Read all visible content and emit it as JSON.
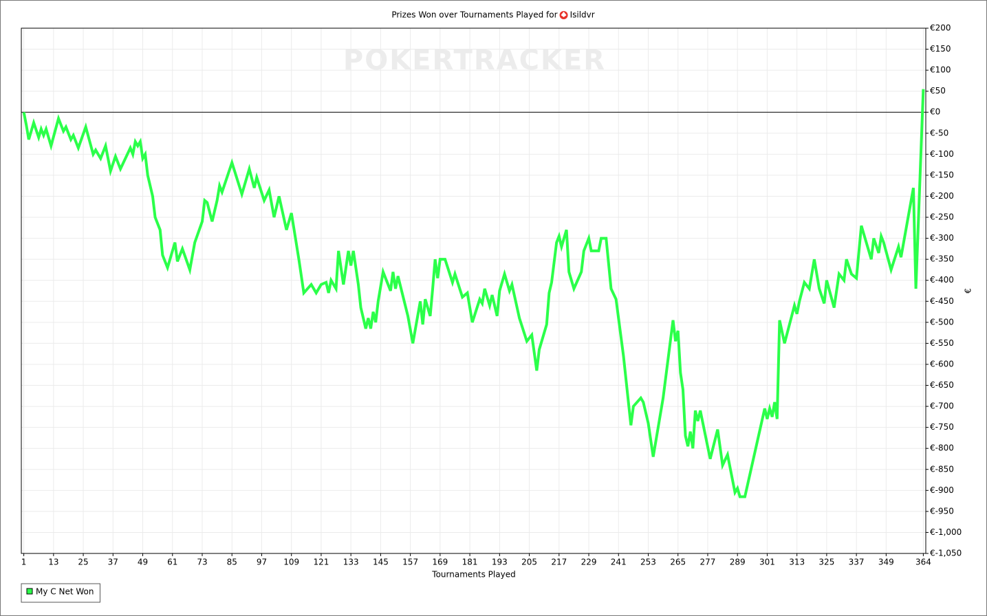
{
  "chart_data": {
    "type": "line",
    "title": "Prizes Won over Tournaments Played for",
    "player": "Isildvr",
    "watermark": "POKERTRACKER",
    "x_label": "Tournaments Played",
    "y_label": "€",
    "legend": "bottom-left",
    "grid": true,
    "xlim": [
      0,
      365
    ],
    "xticks": [
      1,
      13,
      25,
      37,
      49,
      61,
      73,
      85,
      97,
      109,
      121,
      133,
      145,
      157,
      169,
      181,
      193,
      205,
      217,
      229,
      241,
      253,
      265,
      277,
      289,
      301,
      313,
      325,
      337,
      349,
      364
    ],
    "ylim": [
      -1050,
      200
    ],
    "yticks": [
      {
        "value": 200,
        "label": "€200"
      },
      {
        "value": 150,
        "label": "€150"
      },
      {
        "value": 100,
        "label": "€100"
      },
      {
        "value": 50,
        "label": "€50"
      },
      {
        "value": 0,
        "label": "€0"
      },
      {
        "value": -50,
        "label": "€-50"
      },
      {
        "value": -100,
        "label": "€-100"
      },
      {
        "value": -150,
        "label": "€-150"
      },
      {
        "value": -200,
        "label": "€-200"
      },
      {
        "value": -250,
        "label": "€-250"
      },
      {
        "value": -300,
        "label": "€-300"
      },
      {
        "value": -350,
        "label": "€-350"
      },
      {
        "value": -400,
        "label": "€-400"
      },
      {
        "value": -450,
        "label": "€-450"
      },
      {
        "value": -500,
        "label": "€-500"
      },
      {
        "value": -550,
        "label": "€-550"
      },
      {
        "value": -600,
        "label": "€-600"
      },
      {
        "value": -650,
        "label": "€-650"
      },
      {
        "value": -700,
        "label": "€-700"
      },
      {
        "value": -750,
        "label": "€-750"
      },
      {
        "value": -800,
        "label": "€-800"
      },
      {
        "value": -850,
        "label": "€-850"
      },
      {
        "value": -900,
        "label": "€-900"
      },
      {
        "value": -950,
        "label": "€-950"
      },
      {
        "value": -1000,
        "label": "€-1,000"
      },
      {
        "value": -1050,
        "label": "€-1,050"
      }
    ],
    "x": [
      1,
      2,
      3,
      5,
      7,
      8,
      9,
      10,
      12,
      15,
      17,
      18,
      20,
      21,
      23,
      26,
      29,
      30,
      32,
      34,
      36,
      38,
      40,
      44,
      45,
      46,
      47,
      48,
      49,
      50,
      51,
      53,
      54,
      56,
      57,
      59,
      62,
      63,
      65,
      68,
      70,
      73,
      74,
      75,
      77,
      79,
      80,
      81,
      85,
      89,
      92,
      94,
      95,
      98,
      100,
      102,
      104,
      107,
      109,
      112,
      114,
      117,
      119,
      121,
      123,
      124,
      125,
      127,
      128,
      130,
      132,
      133,
      134,
      136,
      137,
      139,
      140,
      141,
      142,
      143,
      144,
      146,
      149,
      150,
      151,
      152,
      156,
      158,
      161,
      162,
      163,
      165,
      166,
      167,
      168,
      169,
      171,
      174,
      175,
      178,
      180,
      181,
      182,
      185,
      186,
      187,
      189,
      190,
      191,
      192,
      193,
      195,
      197,
      198,
      201,
      204,
      206,
      208,
      209,
      212,
      213,
      214,
      216,
      217,
      218,
      220,
      221,
      223,
      226,
      227,
      229,
      230,
      233,
      234,
      236,
      238,
      240,
      243,
      246,
      247,
      250,
      251,
      253,
      255,
      259,
      263,
      264,
      265,
      266,
      267,
      268,
      269,
      270,
      271,
      272,
      273,
      274,
      278,
      281,
      283,
      285,
      288,
      289,
      290,
      292,
      300,
      301,
      302,
      303,
      304,
      305,
      306,
      308,
      310,
      312,
      313,
      314,
      316,
      318,
      320,
      322,
      324,
      325,
      328,
      330,
      332,
      333,
      335,
      337,
      339,
      342,
      343,
      344,
      346,
      347,
      348,
      351,
      354,
      355,
      360,
      361,
      364
    ],
    "series": [
      {
        "name": "My C Net Won",
        "color": "#2bff4a",
        "values": [
          0,
          -30,
          -65,
          -25,
          -60,
          -40,
          -55,
          -40,
          -80,
          -15,
          -45,
          -35,
          -65,
          -55,
          -85,
          -35,
          -100,
          -90,
          -110,
          -80,
          -140,
          -105,
          -135,
          -85,
          -100,
          -70,
          -80,
          -70,
          -110,
          -100,
          -150,
          -200,
          -250,
          -280,
          -340,
          -370,
          -310,
          -355,
          -325,
          -375,
          -310,
          -260,
          -210,
          -215,
          -260,
          -210,
          -175,
          -190,
          -120,
          -195,
          -135,
          -180,
          -155,
          -210,
          -185,
          -250,
          -200,
          -280,
          -240,
          -350,
          -430,
          -410,
          -430,
          -410,
          -405,
          -430,
          -400,
          -420,
          -330,
          -410,
          -330,
          -365,
          -330,
          -410,
          -465,
          -515,
          -490,
          -515,
          -475,
          -500,
          -450,
          -380,
          -425,
          -380,
          -420,
          -390,
          -485,
          -550,
          -450,
          -505,
          -445,
          -485,
          -420,
          -350,
          -395,
          -350,
          -350,
          -405,
          -385,
          -440,
          -430,
          -465,
          -500,
          -445,
          -455,
          -420,
          -460,
          -435,
          -460,
          -485,
          -425,
          -385,
          -425,
          -410,
          -490,
          -545,
          -530,
          -615,
          -565,
          -505,
          -430,
          -405,
          -310,
          -295,
          -320,
          -280,
          -380,
          -420,
          -380,
          -330,
          -300,
          -330,
          -330,
          -300,
          -300,
          -420,
          -445,
          -580,
          -745,
          -700,
          -680,
          -690,
          -740,
          -820,
          -680,
          -495,
          -545,
          -520,
          -620,
          -660,
          -770,
          -795,
          -760,
          -800,
          -710,
          -735,
          -710,
          -825,
          -755,
          -840,
          -815,
          -905,
          -895,
          -915,
          -915,
          -705,
          -730,
          -705,
          -725,
          -690,
          -730,
          -495,
          -550,
          -505,
          -460,
          -480,
          -450,
          -405,
          -420,
          -350,
          -420,
          -455,
          -400,
          -465,
          -385,
          -400,
          -350,
          -385,
          -395,
          -270,
          -330,
          -350,
          -300,
          -335,
          -295,
          -310,
          -375,
          -320,
          -345,
          -180,
          -420,
          55
        ]
      }
    ]
  }
}
